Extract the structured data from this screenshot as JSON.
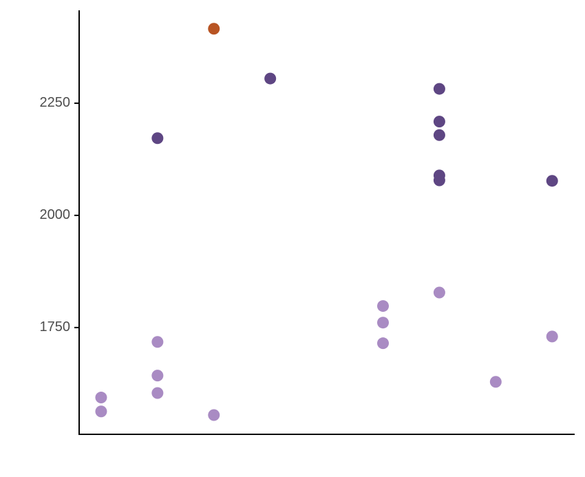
{
  "chart_data": {
    "type": "scatter",
    "series": [
      {
        "color": "#a98bc3",
        "x": [
          1,
          1,
          2,
          2,
          2,
          3,
          6,
          6,
          6,
          7,
          8,
          9
        ],
        "values": [
          1594,
          1563,
          1718,
          1643,
          1604,
          1555,
          1798,
          1761,
          1715,
          1828,
          1629,
          1730
        ]
      },
      {
        "color": "#5e4683",
        "x": [
          2,
          4,
          7,
          7,
          7,
          7,
          7,
          9
        ],
        "values": [
          2172,
          2305,
          2282,
          2209,
          2179,
          2089,
          2078,
          2077
        ]
      },
      {
        "color": "#b85423",
        "x": [
          3
        ],
        "values": [
          2416
        ]
      }
    ],
    "xlim": [
      0.61,
      9.4
    ],
    "ylim": [
      1512,
      2457
    ],
    "yticks": [
      1750,
      2000,
      2250
    ]
  }
}
